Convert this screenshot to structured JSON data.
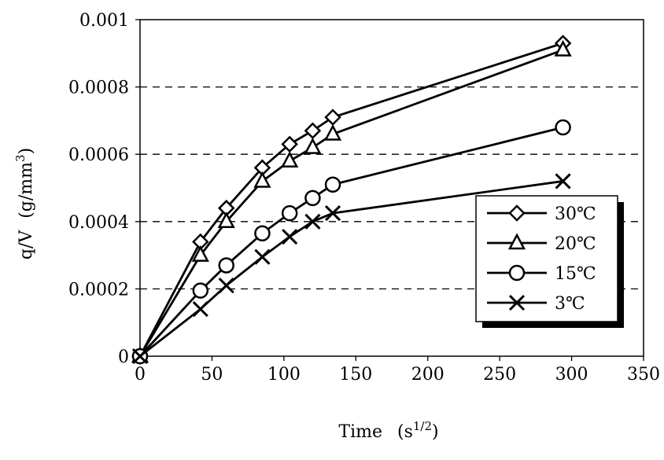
{
  "chart_data": {
    "type": "line",
    "xlabel": "Time",
    "xlabel_unit_base": "s",
    "xlabel_unit_exp": "1/2",
    "ylabel": "q/V",
    "ylabel_unit_base": "g/mm",
    "ylabel_unit_exp": "3",
    "xlim": [
      0,
      350
    ],
    "ylim": [
      0,
      0.001
    ],
    "x_ticks": [
      0,
      50,
      100,
      150,
      200,
      250,
      300,
      350
    ],
    "y_ticks": [
      0,
      0.0002,
      0.0004,
      0.0006,
      0.0008,
      0.001
    ],
    "x_tick_labels": [
      "0",
      "50",
      "100",
      "150",
      "200",
      "250",
      "300",
      "350"
    ],
    "y_tick_labels": [
      "0",
      "0.0002",
      "0.0004",
      "0.0006",
      "0.0008",
      "0.001"
    ],
    "grid": "horizontal dashed",
    "legend_position": "right",
    "series": [
      {
        "name": "30℃",
        "marker": "diamond",
        "x": [
          0,
          42,
          60,
          85,
          104,
          120,
          134,
          294
        ],
        "y": [
          0,
          0.00034,
          0.00044,
          0.00056,
          0.00063,
          0.00067,
          0.00071,
          0.00093
        ]
      },
      {
        "name": "20℃",
        "marker": "triangle",
        "x": [
          0,
          42,
          60,
          85,
          104,
          120,
          134,
          294
        ],
        "y": [
          0,
          0.0003,
          0.0004,
          0.00052,
          0.00058,
          0.00062,
          0.00066,
          0.00091
        ]
      },
      {
        "name": "15℃",
        "marker": "circle",
        "x": [
          0,
          42,
          60,
          85,
          104,
          120,
          134,
          294
        ],
        "y": [
          0,
          0.000195,
          0.00027,
          0.000365,
          0.000425,
          0.00047,
          0.00051,
          0.00068
        ]
      },
      {
        "name": "3℃",
        "marker": "x",
        "x": [
          0,
          42,
          60,
          85,
          104,
          120,
          134,
          294
        ],
        "y": [
          0,
          0.00014,
          0.00021,
          0.000295,
          0.000355,
          0.0004,
          0.000425,
          0.00052
        ]
      }
    ]
  }
}
